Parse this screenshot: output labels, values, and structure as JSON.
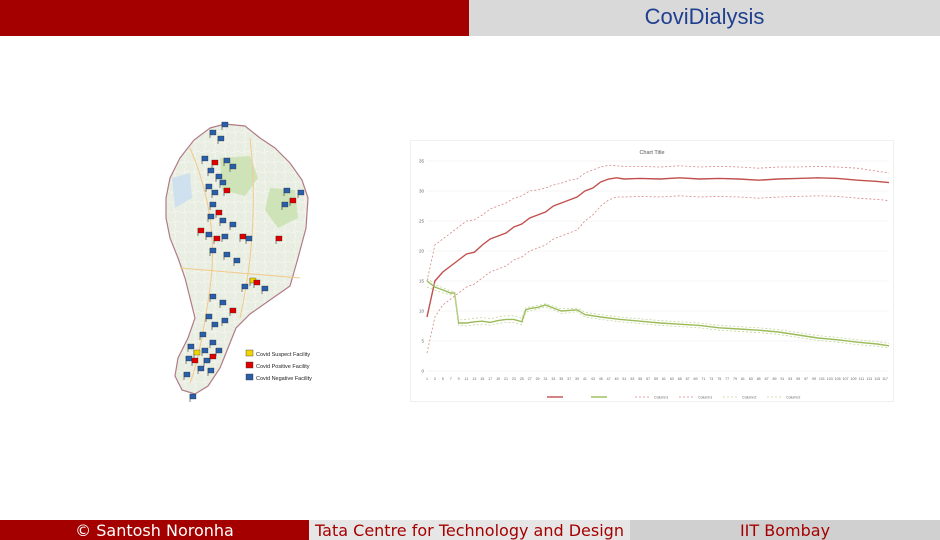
{
  "header": {
    "title": "CoviDialysis"
  },
  "map_legend": {
    "items": [
      {
        "label": "Covid Suspect Facility",
        "color": "#f2d400"
      },
      {
        "label": "Covid Positive Facility",
        "color": "#e00000"
      },
      {
        "label": "Covid Negative Facility",
        "color": "#2a5ea8"
      }
    ]
  },
  "chart_data": {
    "type": "line",
    "title": "Chart Title",
    "yticks": [
      0,
      5,
      10,
      15,
      20,
      25,
      30,
      35
    ],
    "ylim": [
      0,
      35
    ],
    "xlim": [
      1,
      118
    ],
    "xticks": [
      1,
      3,
      5,
      7,
      9,
      11,
      13,
      15,
      17,
      19,
      21,
      23,
      25,
      27,
      29,
      31,
      33,
      35,
      37,
      39,
      41,
      43,
      45,
      47,
      49,
      51,
      53,
      55,
      57,
      59,
      61,
      63,
      65,
      67,
      69,
      71,
      73,
      75,
      77,
      79,
      81,
      83,
      85,
      87,
      89,
      91,
      93,
      95,
      97,
      99,
      101,
      103,
      105,
      107,
      109,
      111,
      113,
      115,
      117
    ],
    "series": [
      {
        "name": "",
        "color": "#c0504d",
        "dash": false,
        "x": [
          1,
          3,
          5,
          7,
          9,
          11,
          13,
          15,
          17,
          19,
          21,
          23,
          25,
          27,
          29,
          31,
          33,
          35,
          37,
          39,
          41,
          43,
          45,
          47,
          49,
          51,
          55,
          60,
          65,
          70,
          75,
          80,
          85,
          90,
          95,
          100,
          105,
          110,
          115,
          118
        ],
        "y": [
          9,
          15,
          16.5,
          17.5,
          18.5,
          19.5,
          19.8,
          21,
          22,
          22.5,
          23,
          24,
          24.5,
          25.5,
          26,
          26.5,
          27.5,
          28,
          28.5,
          29,
          30,
          30.5,
          31.5,
          32,
          32.2,
          32,
          32.1,
          32,
          32.2,
          32,
          32.1,
          32,
          31.8,
          32,
          32.1,
          32.2,
          32.1,
          31.8,
          31.6,
          31.4
        ]
      },
      {
        "name": "",
        "color": "#9bbb59",
        "dash": false,
        "x": [
          1,
          3,
          5,
          7,
          8,
          9,
          11,
          13,
          15,
          17,
          19,
          21,
          23,
          25,
          26,
          27,
          29,
          31,
          33,
          35,
          37,
          39,
          41,
          45,
          50,
          55,
          60,
          65,
          70,
          75,
          80,
          85,
          90,
          95,
          100,
          105,
          110,
          115,
          118
        ],
        "y": [
          15,
          14,
          13.5,
          13,
          13,
          8,
          8,
          8.2,
          8.3,
          8.1,
          8.4,
          8.6,
          8.6,
          8.2,
          10.2,
          10.4,
          10.6,
          11,
          10.5,
          10,
          10.1,
          10.2,
          9.4,
          9,
          8.6,
          8.3,
          8,
          7.8,
          7.6,
          7.2,
          7,
          6.8,
          6.5,
          6,
          5.5,
          5.2,
          4.8,
          4.5,
          4.2
        ]
      },
      {
        "name": "",
        "color": "#d68785",
        "dash": true,
        "x": [
          1,
          3,
          5,
          7,
          9,
          11,
          13,
          15,
          17,
          19,
          21,
          23,
          25,
          27,
          29,
          31,
          33,
          35,
          37,
          39,
          41,
          43,
          45,
          47,
          49,
          51,
          55,
          60,
          65,
          70,
          75,
          80,
          85,
          90,
          95,
          100,
          105,
          110,
          115,
          118
        ],
        "y": [
          15,
          21,
          22,
          23,
          24,
          25,
          25.2,
          26,
          27,
          27.5,
          28,
          28.8,
          29.2,
          30,
          30.2,
          30.5,
          31,
          31.3,
          31.8,
          32,
          33,
          33.5,
          34,
          34.3,
          34.2,
          34.1,
          34.1,
          34,
          34.2,
          34,
          34.1,
          34,
          33.8,
          34,
          34,
          34.1,
          34,
          33.8,
          33.3,
          33
        ]
      },
      {
        "name": "",
        "color": "#d68785",
        "dash": true,
        "x": [
          1,
          3,
          5,
          7,
          9,
          11,
          13,
          15,
          17,
          19,
          21,
          23,
          25,
          27,
          29,
          31,
          33,
          35,
          37,
          39,
          41,
          43,
          45,
          47,
          49,
          51,
          55,
          60,
          65,
          70,
          75,
          80,
          85,
          90,
          95,
          100,
          105,
          110,
          115,
          118
        ],
        "y": [
          3,
          9,
          11,
          12,
          13,
          14,
          14.5,
          15.5,
          16.5,
          17,
          17.5,
          18.5,
          19,
          20,
          20.5,
          21,
          22,
          22.5,
          23,
          23.5,
          25,
          26,
          27.5,
          28.5,
          29,
          29,
          29.1,
          29,
          29.2,
          29,
          29.1,
          29,
          28.8,
          29,
          29.1,
          29.2,
          29.1,
          28.8,
          28.6,
          28.4
        ]
      },
      {
        "name": "",
        "color": "#c3d69b",
        "dash": true,
        "x": [
          1,
          3,
          5,
          7,
          8,
          9,
          11,
          13,
          15,
          17,
          19,
          21,
          23,
          25,
          26,
          27,
          29,
          31,
          33,
          35,
          37,
          39,
          41,
          45,
          50,
          55,
          60,
          65,
          70,
          75,
          80,
          85,
          90,
          95,
          100,
          105,
          110,
          115,
          118
        ],
        "y": [
          14,
          13.5,
          13,
          12.7,
          12.7,
          8.5,
          8.6,
          8.8,
          8.9,
          8.7,
          9,
          9.2,
          9.2,
          8.8,
          10.5,
          10.7,
          10.9,
          11.2,
          10.8,
          10.4,
          10.4,
          10.5,
          9.8,
          9.4,
          9,
          8.7,
          8.4,
          8.2,
          8,
          7.6,
          7.4,
          7.2,
          6.9,
          6.4,
          5.9,
          5.6,
          5.2,
          4.9,
          4.6
        ]
      },
      {
        "name": "",
        "color": "#c3d69b",
        "dash": true,
        "x": [
          1,
          3,
          5,
          7,
          8,
          9,
          11,
          13,
          15,
          17,
          19,
          21,
          23,
          25,
          26,
          27,
          29,
          31,
          33,
          35,
          37,
          39,
          41,
          45,
          50,
          55,
          60,
          65,
          70,
          75,
          80,
          85,
          90,
          95,
          100,
          105,
          110,
          115,
          118
        ],
        "y": [
          15.5,
          14.4,
          13.9,
          13.3,
          13.3,
          7.6,
          7.5,
          7.7,
          7.8,
          7.6,
          7.9,
          8.1,
          8.1,
          7.7,
          9.8,
          10,
          10.3,
          10.7,
          10.2,
          9.6,
          9.7,
          9.9,
          9,
          8.6,
          8.2,
          7.9,
          7.6,
          7.4,
          7.2,
          6.8,
          6.6,
          6.4,
          6.1,
          5.6,
          5.1,
          4.8,
          4.4,
          4.1,
          3.8
        ]
      }
    ],
    "legend": {
      "position": "bottom",
      "entries": [
        {
          "label": "",
          "color": "#c0504d",
          "dash": false
        },
        {
          "label": "",
          "color": "#9bbb59",
          "dash": false
        },
        {
          "label": "Column1",
          "color": "#d68785",
          "dash": true
        },
        {
          "label": "Column1",
          "color": "#d68785",
          "dash": true
        },
        {
          "label": "Column2",
          "color": "#c3d69b",
          "dash": true
        },
        {
          "label": "Column2",
          "color": "#c3d69b",
          "dash": true
        }
      ]
    }
  },
  "footer": {
    "left": "© Santosh Noronha",
    "center": "Tata Centre for Technology and Design",
    "right": "IIT Bombay"
  }
}
